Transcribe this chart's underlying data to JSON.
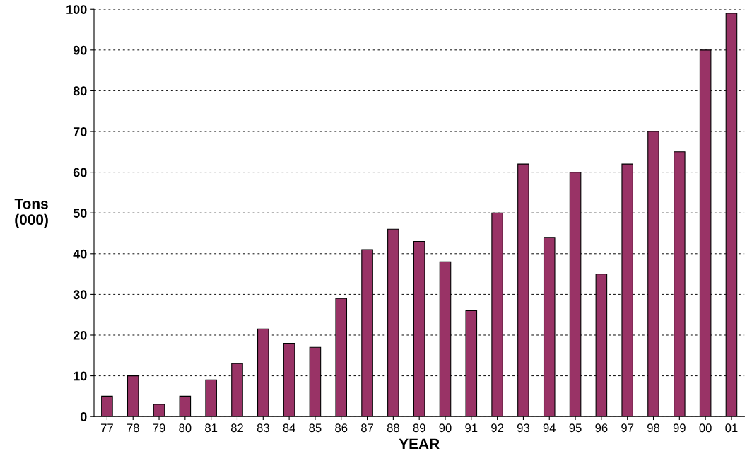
{
  "chart_data": {
    "type": "bar",
    "xlabel": "YEAR",
    "ylabel": "Tons\n(000)",
    "categories": [
      "77",
      "78",
      "79",
      "80",
      "81",
      "82",
      "83",
      "84",
      "85",
      "86",
      "87",
      "88",
      "89",
      "90",
      "91",
      "92",
      "93",
      "94",
      "95",
      "96",
      "97",
      "98",
      "99",
      "00",
      "01"
    ],
    "values": [
      5,
      10,
      3,
      5,
      9,
      13,
      21.5,
      18,
      17,
      29,
      41,
      46,
      43,
      38,
      26,
      50,
      62,
      44,
      60,
      35,
      62,
      70,
      65,
      90,
      99
    ],
    "color": "#993366",
    "ylim": [
      0,
      100
    ],
    "yticks": [
      0,
      10,
      20,
      30,
      40,
      50,
      60,
      70,
      80,
      90,
      100
    ],
    "grid": "y"
  }
}
